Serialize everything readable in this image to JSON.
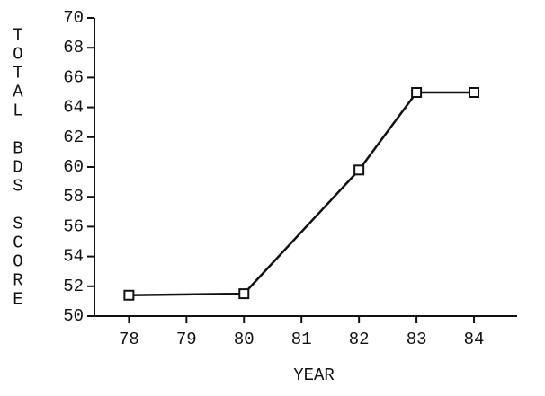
{
  "chart_data": {
    "type": "line",
    "xlabel": "YEAR",
    "ylabel": "TOTAL BDS SCORE",
    "x": [
      78,
      80,
      82,
      83,
      84
    ],
    "series": [
      {
        "values": [
          51.4,
          51.5,
          59.8,
          65.0,
          65.0
        ],
        "color": "#111111"
      }
    ],
    "xlim": [
      77.4,
      84.75
    ],
    "xticks": [
      78,
      79,
      80,
      81,
      82,
      83,
      84
    ],
    "ylim": [
      50,
      70
    ],
    "yticks": [
      50,
      52,
      54,
      56,
      58,
      60,
      62,
      64,
      66,
      68,
      70
    ],
    "markers": "square"
  }
}
